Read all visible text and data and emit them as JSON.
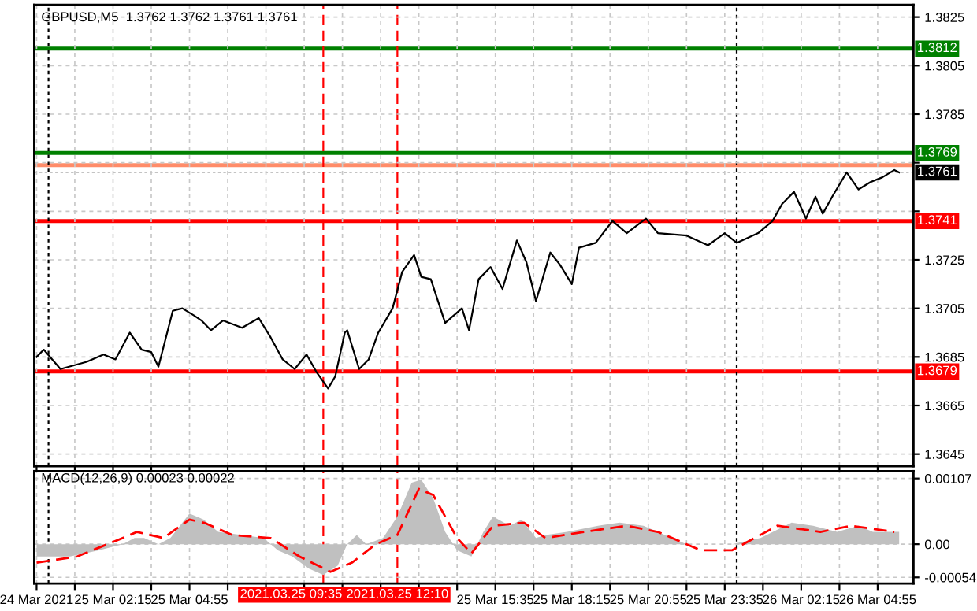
{
  "chart_data": [
    {
      "type": "line",
      "title": "GBPUSD,M5  1.3762 1.3762 1.3761 1.3761",
      "xlim": [
        "2021-03-24T23:30",
        "2021-03-26T06:10"
      ],
      "ylim": [
        1.364,
        1.383
      ],
      "xticks": [
        {
          "value": "2021-03-24T23:35",
          "label": null
        },
        {
          "value": "2021-03-25T00:55",
          "label": null
        },
        {
          "value": "2021-03-25T02:15",
          "label": null
        },
        {
          "value": "2021-03-25T03:35",
          "label": null
        },
        {
          "value": "2021-03-25T04:55",
          "label": null
        },
        {
          "value": "2021-03-25T06:15",
          "label": null
        },
        {
          "value": "2021-03-25T07:35",
          "label": null
        },
        {
          "value": "2021-03-25T08:55",
          "label": null
        },
        {
          "value": "2021-03-25T10:15",
          "label": null
        },
        {
          "value": "2021-03-25T11:35",
          "label": null
        },
        {
          "value": "2021-03-25T12:55",
          "label": null
        },
        {
          "value": "2021-03-25T14:15",
          "label": null
        },
        {
          "value": "2021-03-25T15:35",
          "label": null
        },
        {
          "value": "2021-03-25T16:55",
          "label": null
        },
        {
          "value": "2021-03-25T18:15",
          "label": null
        },
        {
          "value": "2021-03-25T19:35",
          "label": null
        },
        {
          "value": "2021-03-25T20:55",
          "label": null
        },
        {
          "value": "2021-03-25T22:15",
          "label": null
        },
        {
          "value": "2021-03-25T23:35",
          "label": null
        },
        {
          "value": "2021-03-26T00:55",
          "label": null
        },
        {
          "value": "2021-03-26T02:15",
          "label": null
        },
        {
          "value": "2021-03-26T03:35",
          "label": null
        },
        {
          "value": "2021-03-26T04:55",
          "label": null
        }
      ],
      "yticks": [
        1.3825,
        1.3805,
        1.3785,
        {
          "value": 1.3765,
          "label": null
        },
        {
          "value": 1.3745,
          "label": null
        },
        1.3725,
        1.3705,
        1.3685,
        1.3665,
        1.3645
      ],
      "tick_labels": "y",
      "grid": true,
      "series": [
        {
          "color": "#000000",
          "x": [
            "2021-03-24T23:35",
            "2021-03-24T23:50",
            "2021-03-25T00:25",
            "2021-03-25T01:20",
            "2021-03-25T01:55",
            "2021-03-25T02:20",
            "2021-03-25T02:50",
            "2021-03-25T03:15",
            "2021-03-25T03:35",
            "2021-03-25T03:50",
            "2021-03-25T04:20",
            "2021-03-25T04:40",
            "2021-03-25T05:05",
            "2021-03-25T05:20",
            "2021-03-25T05:40",
            "2021-03-25T06:05",
            "2021-03-25T06:45",
            "2021-03-25T07:20",
            "2021-03-25T07:45",
            "2021-03-25T08:10",
            "2021-03-25T08:35",
            "2021-03-25T09:00",
            "2021-03-25T09:20",
            "2021-03-25T09:45",
            "2021-03-25T10:00",
            "2021-03-25T10:20",
            "2021-03-25T10:25",
            "2021-03-25T10:50",
            "2021-03-25T11:10",
            "2021-03-25T11:30",
            "2021-03-25T12:00",
            "2021-03-25T12:20",
            "2021-03-25T12:45",
            "2021-03-25T13:00",
            "2021-03-25T13:20",
            "2021-03-25T13:50",
            "2021-03-25T14:25",
            "2021-03-25T14:40",
            "2021-03-25T15:00",
            "2021-03-25T15:25",
            "2021-03-25T15:50",
            "2021-03-25T16:20",
            "2021-03-25T16:40",
            "2021-03-25T17:00",
            "2021-03-25T17:30",
            "2021-03-25T17:50",
            "2021-03-25T18:15",
            "2021-03-25T18:30",
            "2021-03-25T19:05",
            "2021-03-25T19:40",
            "2021-03-25T20:10",
            "2021-03-25T20:50",
            "2021-03-25T21:15",
            "2021-03-25T22:15",
            "2021-03-25T23:00",
            "2021-03-25T23:35",
            "2021-03-26T00:00",
            "2021-03-26T00:45",
            "2021-03-26T01:15",
            "2021-03-26T01:35",
            "2021-03-26T02:00",
            "2021-03-26T02:25",
            "2021-03-26T02:45",
            "2021-03-26T03:00",
            "2021-03-26T03:20",
            "2021-03-26T03:50",
            "2021-03-26T04:15",
            "2021-03-26T04:40",
            "2021-03-26T05:05",
            "2021-03-26T05:30",
            "2021-03-26T05:40"
          ],
          "values": [
            1.3685,
            1.3688,
            1.368,
            1.3683,
            1.3686,
            1.3684,
            1.3695,
            1.3688,
            1.3687,
            1.3681,
            1.3704,
            1.3705,
            1.3702,
            1.37,
            1.3696,
            1.37,
            1.3697,
            1.3701,
            1.3693,
            1.3684,
            1.368,
            1.3686,
            1.3679,
            1.3672,
            1.3677,
            1.3695,
            1.3696,
            1.368,
            1.3684,
            1.3695,
            1.3705,
            1.372,
            1.3727,
            1.3718,
            1.3717,
            1.3699,
            1.3705,
            1.3696,
            1.3717,
            1.3722,
            1.3713,
            1.3733,
            1.3724,
            1.3708,
            1.3728,
            1.3723,
            1.3715,
            1.373,
            1.3732,
            1.3741,
            1.3736,
            1.3742,
            1.3736,
            1.3735,
            1.3731,
            1.3736,
            1.3732,
            1.3736,
            1.3741,
            1.3748,
            1.3753,
            1.3742,
            1.3751,
            1.3744,
            1.3751,
            1.3761,
            1.3754,
            1.3757,
            1.3759,
            1.3762,
            1.3761
          ]
        }
      ],
      "ref_lines": [
        {
          "axis": "y",
          "value": 1.3812,
          "label": "1.3812",
          "color": "#008000",
          "line_style": "solid"
        },
        {
          "axis": "y",
          "value": 1.3769,
          "label": "1.3769",
          "color": "#008000",
          "line_style": "solid"
        },
        {
          "axis": "y",
          "value": 1.3764,
          "color": "#ff8c69",
          "line_style": "solid"
        },
        {
          "axis": "y",
          "value": 1.3741,
          "label": "1.3741",
          "color": "#ff0000",
          "line_style": "solid"
        },
        {
          "axis": "y",
          "value": 1.3679,
          "label": "1.3679",
          "color": "#ff0000",
          "line_style": "solid"
        },
        {
          "axis": "y",
          "value": 1.3761,
          "label": "1.3761",
          "color": "#b0b0b0",
          "line_style": "dotted"
        },
        {
          "axis": "x",
          "value": "2021-03-25T00:00",
          "color": "#000000",
          "line_style": "dotted"
        },
        {
          "axis": "x",
          "value": "2021-03-26T00:00",
          "color": "#000000",
          "line_style": "dotted"
        },
        {
          "axis": "x",
          "value": "2021-03-25T09:35",
          "color": "#ff0000",
          "line_style": "dashed"
        },
        {
          "axis": "x",
          "value": "2021-03-25T12:10",
          "color": "#ff0000",
          "line_style": "dashed"
        }
      ]
    },
    {
      "type": "area",
      "title": "MACD(12,26,9) 0.00023 0.00022",
      "xlim": [
        "2021-03-24T23:30",
        "2021-03-26T06:10"
      ],
      "ylim": [
        -0.00064,
        0.00119
      ],
      "xticks": [
        {
          "value": "2021-03-24T23:35",
          "label": "24 Mar 2021"
        },
        {
          "value": "2021-03-25T00:55",
          "label": null
        },
        {
          "value": "2021-03-25T02:15",
          "label": "25 Mar 02:15"
        },
        {
          "value": "2021-03-25T03:35",
          "label": null
        },
        {
          "value": "2021-03-25T04:55",
          "label": "25 Mar 04:55"
        },
        {
          "value": "2021-03-25T06:15",
          "label": null
        },
        {
          "value": "2021-03-25T07:35",
          "label": null
        },
        {
          "value": "2021-03-25T08:55",
          "label": null
        },
        {
          "value": "2021-03-25T10:15",
          "label": null
        },
        {
          "value": "2021-03-25T11:35",
          "label": null
        },
        {
          "value": "2021-03-25T12:55",
          "label": null
        },
        {
          "value": "2021-03-25T14:15",
          "label": null
        },
        {
          "value": "2021-03-25T15:35",
          "label": "25 Mar 15:35"
        },
        {
          "value": "2021-03-25T16:55",
          "label": null
        },
        {
          "value": "2021-03-25T18:15",
          "label": "25 Mar 18:15"
        },
        {
          "value": "2021-03-25T19:35",
          "label": null
        },
        {
          "value": "2021-03-25T20:55",
          "label": "25 Mar 20:55"
        },
        {
          "value": "2021-03-25T22:15",
          "label": null
        },
        {
          "value": "2021-03-25T23:35",
          "label": "25 Mar 23:35"
        },
        {
          "value": "2021-03-26T00:55",
          "label": null
        },
        {
          "value": "2021-03-26T02:15",
          "label": "26 Mar 02:15"
        },
        {
          "value": "2021-03-26T03:35",
          "label": null
        },
        {
          "value": "2021-03-26T04:55",
          "label": "26 Mar 04:55"
        }
      ],
      "yticks": [
        0.00107,
        {
          "value": 0,
          "label": "0.00"
        },
        -0.00054
      ],
      "grid": true,
      "series": [
        {
          "type": "area",
          "color": "#c0c0c0",
          "x": [
            "2021-03-24T23:35",
            "2021-03-25T00:45",
            "2021-03-25T01:45",
            "2021-03-25T02:35",
            "2021-03-25T03:00",
            "2021-03-25T03:20",
            "2021-03-25T03:50",
            "2021-03-25T04:15",
            "2021-03-25T04:55",
            "2021-03-25T05:25",
            "2021-03-25T05:55",
            "2021-03-25T06:45",
            "2021-03-25T07:30",
            "2021-03-25T08:00",
            "2021-03-25T08:30",
            "2021-03-25T09:05",
            "2021-03-25T09:35",
            "2021-03-25T10:05",
            "2021-03-25T10:25",
            "2021-03-25T10:45",
            "2021-03-25T11:05",
            "2021-03-25T11:40",
            "2021-03-25T12:10",
            "2021-03-25T12:40",
            "2021-03-25T13:00",
            "2021-03-25T13:25",
            "2021-03-25T13:50",
            "2021-03-25T14:15",
            "2021-03-25T14:45",
            "2021-03-25T15:10",
            "2021-03-25T15:30",
            "2021-03-25T16:05",
            "2021-03-25T16:30",
            "2021-03-25T17:00",
            "2021-03-25T17:20",
            "2021-03-25T18:05",
            "2021-03-25T19:10",
            "2021-03-25T19:55",
            "2021-03-25T20:45",
            "2021-03-25T21:30",
            "2021-03-25T22:15",
            "2021-03-25T23:05",
            "2021-03-25T23:50",
            "2021-03-26T00:50",
            "2021-03-26T01:55",
            "2021-03-26T02:40",
            "2021-03-26T03:30",
            "2021-03-26T04:15",
            "2021-03-26T04:45",
            "2021-03-26T05:40"
          ],
          "values": [
            -0.0002,
            -0.0002,
            -0.0001,
            0.0,
            0.0001,
            0.0001,
            0.0,
            0.0001,
            0.0005,
            0.0004,
            0.0002,
            0.00015,
            0.0001,
            -0.0001,
            -0.0002,
            -0.0004,
            -0.0005,
            -0.00035,
            0.0,
            0.00015,
            0.0,
            0.0001,
            0.00045,
            0.001,
            0.00105,
            0.00075,
            0.0002,
            -0.0001,
            -0.0002,
            0.0002,
            0.00045,
            0.0003,
            0.0004,
            0.0001,
            0.00015,
            0.0002,
            0.0003,
            0.00035,
            0.0003,
            0.00015,
            0.0,
            0.0,
            0.0,
            0.0001,
            0.00035,
            0.0003,
            0.0002,
            0.0003,
            0.0002,
            0.0002
          ]
        },
        {
          "type": "line",
          "color": "#ff0000",
          "line_style": "dashed",
          "x": [
            "2021-03-24T23:35",
            "2021-03-25T01:00",
            "2021-03-25T02:35",
            "2021-03-25T03:05",
            "2021-03-25T04:00",
            "2021-03-25T04:55",
            "2021-03-25T05:25",
            "2021-03-25T06:25",
            "2021-03-25T07:45",
            "2021-03-25T08:45",
            "2021-03-25T09:50",
            "2021-03-25T10:35",
            "2021-03-25T11:25",
            "2021-03-25T12:10",
            "2021-03-25T12:55",
            "2021-03-25T13:25",
            "2021-03-25T14:15",
            "2021-03-25T14:45",
            "2021-03-25T15:30",
            "2021-03-25T16:35",
            "2021-03-25T17:20",
            "2021-03-25T18:40",
            "2021-03-25T20:10",
            "2021-03-25T21:15",
            "2021-03-25T22:45",
            "2021-03-25T23:50",
            "2021-03-26T01:25",
            "2021-03-26T02:55",
            "2021-03-26T04:00",
            "2021-03-26T05:30"
          ],
          "values": [
            -0.0003,
            -0.0002,
            0.0001,
            0.0002,
            0.0001,
            0.0004,
            0.00035,
            0.00015,
            0.0001,
            -0.0002,
            -0.00045,
            -0.0003,
            0.0,
            0.00015,
            0.0009,
            0.0008,
            0.0001,
            -0.00015,
            0.0003,
            0.00035,
            0.0001,
            0.0002,
            0.0003,
            0.0002,
            -0.0001,
            -0.0001,
            0.0003,
            0.0002,
            0.0003,
            0.0002
          ]
        }
      ],
      "ref_lines": [
        {
          "axis": "x",
          "value": "2021-03-25T00:00",
          "color": "#000000",
          "line_style": "dotted"
        },
        {
          "axis": "x",
          "value": "2021-03-26T00:00",
          "color": "#000000",
          "line_style": "dotted"
        },
        {
          "axis": "x",
          "value": "2021-03-25T09:35",
          "label": "2021.03.25 09:35",
          "color": "#ff0000",
          "line_style": "dashed"
        },
        {
          "axis": "x",
          "value": "2021-03-25T12:10",
          "label": "2021.03.25 12:10",
          "color": "#ff0000",
          "line_style": "dashed"
        }
      ]
    }
  ]
}
